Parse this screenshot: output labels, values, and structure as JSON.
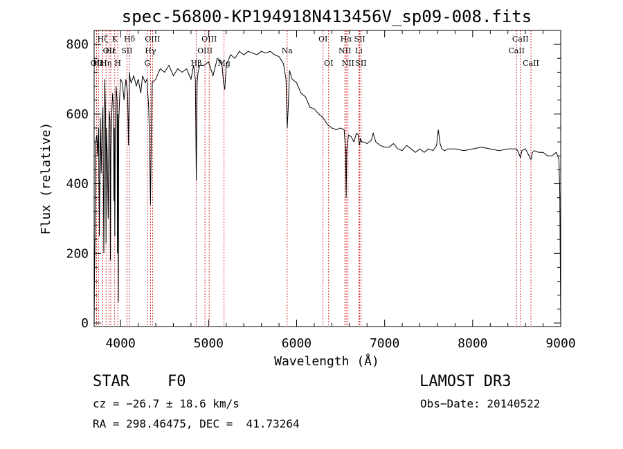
{
  "chart_data": {
    "type": "line",
    "title": "spec-56800-KP194918N413456V_sp09-008.fits",
    "xlabel": "Wavelength (Å)",
    "ylabel": "Flux (relative)",
    "xlim": [
      3700,
      9000
    ],
    "ylim": [
      -10,
      840
    ],
    "x_ticks": [
      4000,
      5000,
      6000,
      7000,
      8000,
      9000
    ],
    "y_ticks": [
      0,
      200,
      400,
      600,
      800
    ],
    "series": [
      {
        "name": "flux",
        "x": [
          3700,
          3705,
          3710,
          3715,
          3720,
          3730,
          3740,
          3750,
          3760,
          3770,
          3780,
          3790,
          3800,
          3810,
          3820,
          3830,
          3835,
          3840,
          3850,
          3860,
          3870,
          3880,
          3885,
          3890,
          3900,
          3910,
          3920,
          3925,
          3930,
          3935,
          3940,
          3950,
          3960,
          3965,
          3970,
          3975,
          3980,
          3990,
          4000,
          4020,
          4040,
          4060,
          4080,
          4090,
          4100,
          4110,
          4120,
          4150,
          4180,
          4200,
          4230,
          4250,
          4280,
          4300,
          4320,
          4330,
          4340,
          4350,
          4360,
          4400,
          4450,
          4500,
          4550,
          4600,
          4650,
          4700,
          4750,
          4800,
          4830,
          4850,
          4861,
          4870,
          4880,
          4900,
          4950,
          5000,
          5050,
          5100,
          5150,
          5170,
          5184,
          5200,
          5250,
          5300,
          5350,
          5400,
          5450,
          5500,
          5550,
          5600,
          5650,
          5700,
          5750,
          5800,
          5850,
          5880,
          5893,
          5905,
          5920,
          5950,
          6000,
          6050,
          6100,
          6150,
          6200,
          6250,
          6300,
          6350,
          6400,
          6450,
          6500,
          6540,
          6555,
          6563,
          6570,
          6590,
          6620,
          6650,
          6680,
          6700,
          6715,
          6725,
          6740,
          6760,
          6800,
          6850,
          6870,
          6900,
          6950,
          7000,
          7050,
          7100,
          7150,
          7200,
          7250,
          7300,
          7350,
          7400,
          7450,
          7500,
          7550,
          7590,
          7610,
          7630,
          7650,
          7680,
          7720,
          7800,
          7900,
          8000,
          8100,
          8200,
          8300,
          8400,
          8498,
          8520,
          8542,
          8560,
          8600,
          8662,
          8680,
          8700,
          8750,
          8800,
          8850,
          8900,
          8950,
          8980,
          8990,
          9000
        ],
        "y": [
          0,
          150,
          250,
          500,
          520,
          540,
          480,
          560,
          250,
          590,
          430,
          560,
          620,
          200,
          700,
          600,
          230,
          560,
          470,
          300,
          610,
          580,
          180,
          500,
          600,
          660,
          620,
          350,
          560,
          250,
          530,
          680,
          640,
          200,
          600,
          60,
          580,
          650,
          700,
          690,
          640,
          700,
          660,
          510,
          720,
          700,
          690,
          710,
          680,
          700,
          660,
          710,
          690,
          700,
          620,
          520,
          340,
          560,
          690,
          700,
          730,
          720,
          740,
          710,
          730,
          720,
          730,
          700,
          740,
          700,
          410,
          690,
          720,
          740,
          740,
          750,
          710,
          760,
          750,
          690,
          670,
          740,
          770,
          760,
          780,
          770,
          780,
          775,
          770,
          780,
          775,
          780,
          770,
          765,
          745,
          700,
          560,
          620,
          725,
          700,
          690,
          660,
          650,
          620,
          615,
          600,
          590,
          570,
          560,
          555,
          560,
          555,
          500,
          360,
          500,
          540,
          535,
          520,
          545,
          540,
          510,
          530,
          520,
          520,
          515,
          525,
          545,
          520,
          510,
          505,
          505,
          515,
          500,
          495,
          510,
          500,
          490,
          500,
          490,
          500,
          495,
          510,
          555,
          515,
          500,
          495,
          500,
          500,
          495,
          500,
          505,
          500,
          495,
          500,
          500,
          490,
          475,
          495,
          500,
          470,
          490,
          495,
          490,
          490,
          480,
          480,
          490,
          470,
          370,
          0
        ]
      }
    ],
    "line_markers": [
      {
        "wl": 3727,
        "label": "OII",
        "row": 2
      },
      {
        "wl": 3750,
        "label": "Hε",
        "row": 2
      },
      {
        "wl": 3798,
        "label": "Hζ",
        "row": 0
      },
      {
        "wl": 3835,
        "label": "Hη",
        "row": 2
      },
      {
        "wl": 3869,
        "label": "OII",
        "row": 1
      },
      {
        "wl": 3889,
        "label": "Hε",
        "row": 1
      },
      {
        "wl": 3934,
        "label": "K",
        "row": 0
      },
      {
        "wl": 3969,
        "label": "H",
        "row": 2
      },
      {
        "wl": 4072,
        "label": "SII",
        "row": 1
      },
      {
        "wl": 4102,
        "label": "Hδ",
        "row": 0
      },
      {
        "wl": 4304,
        "label": "G",
        "row": 2
      },
      {
        "wl": 4340,
        "label": "Hγ",
        "row": 1
      },
      {
        "wl": 4363,
        "label": "OIII",
        "row": 0
      },
      {
        "wl": 4861,
        "label": "Hβ",
        "row": 2
      },
      {
        "wl": 4959,
        "label": "OIII",
        "row": 1
      },
      {
        "wl": 5007,
        "label": "OIII",
        "row": 0
      },
      {
        "wl": 5176,
        "label": "Mg",
        "row": 2
      },
      {
        "wl": 5893,
        "label": "Na",
        "row": 1
      },
      {
        "wl": 6300,
        "label": "OI",
        "row": 0
      },
      {
        "wl": 6364,
        "label": "OI",
        "row": 2
      },
      {
        "wl": 6548,
        "label": "NII",
        "row": 1
      },
      {
        "wl": 6563,
        "label": "Hα",
        "row": 0
      },
      {
        "wl": 6584,
        "label": "NII",
        "row": 2
      },
      {
        "wl": 6707,
        "label": "Li",
        "row": 1
      },
      {
        "wl": 6717,
        "label": "SII",
        "row": 0
      },
      {
        "wl": 6731,
        "label": "SII",
        "row": 2
      },
      {
        "wl": 8498,
        "label": "CaII",
        "row": 1
      },
      {
        "wl": 8542,
        "label": "CaII",
        "row": 0
      },
      {
        "wl": 8662,
        "label": "CaII",
        "row": 2
      }
    ]
  },
  "info": {
    "class": "STAR",
    "subclass": "F0",
    "cz": "cz = −26.7 ± 18.6 km/s",
    "radec": "RA = 298.46475, DEC =  41.73264",
    "survey": "LAMOST DR3",
    "obsdate": "Obs−Date: 20140522"
  }
}
